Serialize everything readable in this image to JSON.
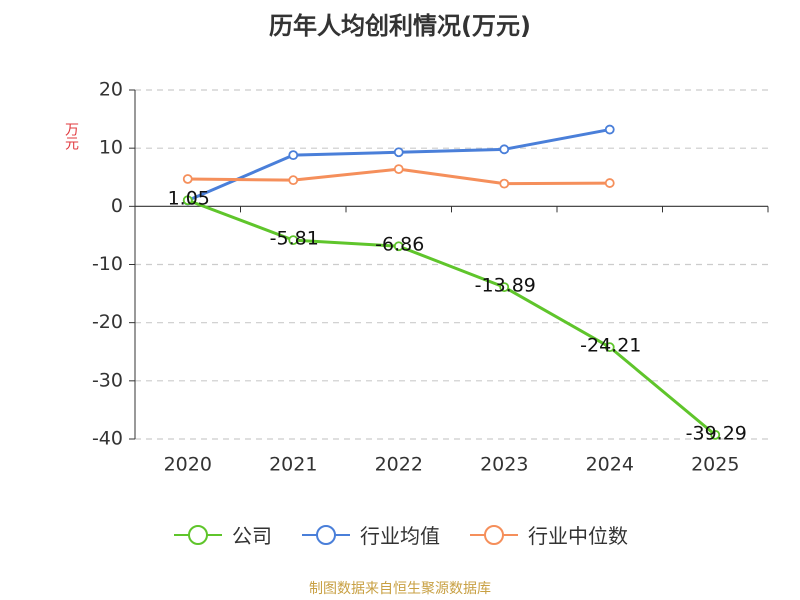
{
  "chart_data": {
    "type": "line",
    "title": "历年人均创利情况(万元)",
    "ylabel": "万元",
    "xlabel": "",
    "categories": [
      "2020",
      "2021",
      "2022",
      "2023",
      "2024",
      "2025"
    ],
    "ylim": [
      -40,
      20
    ],
    "yticks": [
      20,
      10,
      0,
      -10,
      -20,
      -30,
      -40
    ],
    "grid": true,
    "legend_position": "bottom",
    "series": [
      {
        "name": "公司",
        "color": "#5fc52b",
        "values": [
          1.05,
          -5.81,
          -6.86,
          -13.89,
          -24.21,
          -39.29
        ],
        "labels": [
          "1.05",
          "-5.81",
          "-6.86",
          "-13.89",
          "-24.21",
          "-39.29"
        ]
      },
      {
        "name": "行业均值",
        "color": "#4a7fd9",
        "values": [
          1.0,
          8.8,
          9.3,
          9.8,
          13.2,
          null
        ]
      },
      {
        "name": "行业中位数",
        "color": "#f58f5b",
        "values": [
          4.7,
          4.5,
          6.4,
          3.9,
          4.0,
          null
        ]
      }
    ]
  },
  "footer": {
    "source": "制图数据来自恒生聚源数据库"
  }
}
